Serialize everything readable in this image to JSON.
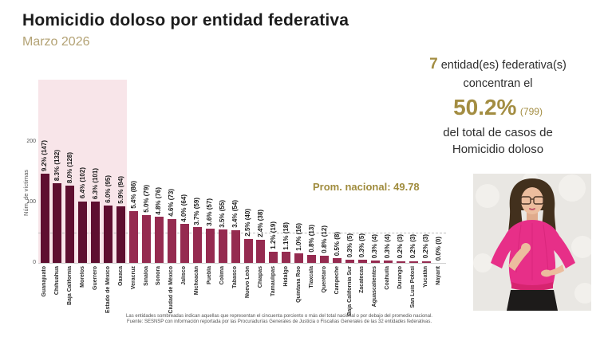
{
  "header": {
    "title": "Homicidio doloso por entidad federativa",
    "subtitle": "Marzo 2026"
  },
  "summary": {
    "count": "7",
    "line1_rest": " entidad(es) federativa(s)",
    "line2": "concentran el",
    "pct": "50.2%",
    "total": "(799)",
    "line4": "del total de casos de",
    "line5": "Homicidio doloso"
  },
  "chart_data": {
    "type": "bar",
    "title": "Homicidio doloso por entidad federativa — Marzo 2026",
    "xlabel": "",
    "ylabel": "Núm. de víctimas",
    "yticks": [
      0,
      100,
      200
    ],
    "ylim": [
      0,
      302
    ],
    "grid": false,
    "national_average": 49.78,
    "national_average_label": "Prom. nacional: 49.78",
    "highlighted_entities": 7,
    "highlight_note": "first 7 bars shaded (concentrate 50.2% of cases, 799 victims)",
    "entities": [
      {
        "name": "Guanajuato",
        "percent": 9.2,
        "victims": 147
      },
      {
        "name": "Chihuahua",
        "percent": 8.3,
        "victims": 132
      },
      {
        "name": "Baja California",
        "percent": 8.0,
        "victims": 128
      },
      {
        "name": "Morelos",
        "percent": 6.4,
        "victims": 102
      },
      {
        "name": "Guerrero",
        "percent": 6.3,
        "victims": 101
      },
      {
        "name": "Estado de México",
        "percent": 6.0,
        "victims": 95
      },
      {
        "name": "Oaxaca",
        "percent": 5.9,
        "victims": 94
      },
      {
        "name": "Veracruz",
        "percent": 5.4,
        "victims": 86
      },
      {
        "name": "Sinaloa",
        "percent": 5.0,
        "victims": 79
      },
      {
        "name": "Sonora",
        "percent": 4.8,
        "victims": 76
      },
      {
        "name": "Ciudad de México",
        "percent": 4.6,
        "victims": 73
      },
      {
        "name": "Jalisco",
        "percent": 4.0,
        "victims": 64
      },
      {
        "name": "Michoacán",
        "percent": 3.7,
        "victims": 59
      },
      {
        "name": "Puebla",
        "percent": 3.6,
        "victims": 57
      },
      {
        "name": "Colima",
        "percent": 3.5,
        "victims": 55
      },
      {
        "name": "Tabasco",
        "percent": 3.4,
        "victims": 54
      },
      {
        "name": "Nuevo León",
        "percent": 2.5,
        "victims": 40
      },
      {
        "name": "Chiapas",
        "percent": 2.4,
        "victims": 38
      },
      {
        "name": "Tamaulipas",
        "percent": 1.2,
        "victims": 19
      },
      {
        "name": "Hidalgo",
        "percent": 1.1,
        "victims": 18
      },
      {
        "name": "Quintana Roo",
        "percent": 1.0,
        "victims": 16
      },
      {
        "name": "Tlaxcala",
        "percent": 0.8,
        "victims": 13
      },
      {
        "name": "Querétaro",
        "percent": 0.8,
        "victims": 12
      },
      {
        "name": "Campeche",
        "percent": 0.5,
        "victims": 8
      },
      {
        "name": "Baja California Sur",
        "percent": 0.3,
        "victims": 5
      },
      {
        "name": "Zacatecas",
        "percent": 0.3,
        "victims": 5
      },
      {
        "name": "Aguascalientes",
        "percent": 0.3,
        "victims": 4
      },
      {
        "name": "Coahuila",
        "percent": 0.3,
        "victims": 4
      },
      {
        "name": "Durango",
        "percent": 0.2,
        "victims": 3
      },
      {
        "name": "San Luis Potosí",
        "percent": 0.2,
        "victims": 3
      },
      {
        "name": "Yucatán",
        "percent": 0.2,
        "victims": 3
      },
      {
        "name": "Nayarit",
        "percent": 0.0,
        "victims": 0
      }
    ]
  },
  "footnote": {
    "line1": "Las entidades sombreadas indican aquellas que representan el cincuenta porciento o más del total nacional o por debajo del promedio nacional.",
    "line2": "Fuente: SESNSP con información reportada por las Procuradurías Generales de Justicia o Fiscalías Generales de las 32 entidades federativas."
  },
  "colors": {
    "accent_gold": "#a38d42",
    "subtitle_gold": "#b3a274",
    "bar_dark": "#5e0f30",
    "bar_light": "#952b50",
    "highlight_bg": "#f8e5e9",
    "blouse_pink": "#e72f88"
  }
}
